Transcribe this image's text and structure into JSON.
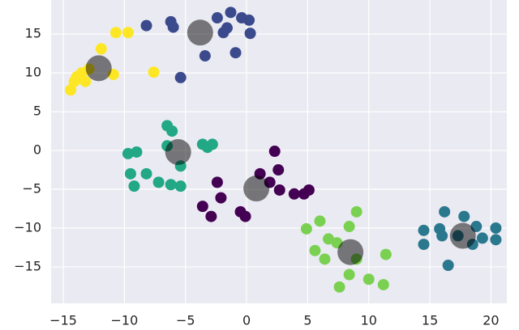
{
  "chart_data": {
    "type": "scatter",
    "grid": true,
    "background": "#eaeaf2",
    "xlim": [
      -16,
      21.3
    ],
    "ylim": [
      -19.7,
      19.4
    ],
    "xticks": [
      {
        "value": -15,
        "label": "−15"
      },
      {
        "value": -10,
        "label": "−10"
      },
      {
        "value": -5,
        "label": "−5"
      },
      0,
      5,
      10,
      15,
      20
    ],
    "yticks": [
      {
        "value": -15,
        "label": "−15"
      },
      {
        "value": -10,
        "label": "−10"
      },
      {
        "value": -5,
        "label": "−5"
      },
      0,
      5,
      10,
      15
    ],
    "series": [
      {
        "color": "#fde725",
        "x": [
          -14.4,
          -13.9,
          -13.5,
          -13.2,
          -14.1,
          -10.9,
          -11.9,
          -10.7,
          -9.7,
          -7.6,
          -12.9
        ],
        "values": [
          7.8,
          9.5,
          10,
          8.9,
          8.9,
          9.8,
          13.1,
          15.2,
          15.2,
          10.1,
          10.5
        ]
      },
      {
        "color": "#3b4a8c",
        "x": [
          -8.2,
          -6.2,
          -6.0,
          -5.4,
          -3.4,
          -2.4,
          -1.6,
          -1.9,
          -1.3,
          -0.9,
          0.2,
          0.3,
          -0.4
        ],
        "values": [
          16.1,
          16.6,
          15.9,
          9.4,
          12.2,
          17.1,
          15.8,
          15.2,
          17.8,
          12.6,
          16.8,
          15.1,
          17.1
        ]
      },
      {
        "color": "#22a884",
        "x": [
          -9.7,
          -9.0,
          -9.5,
          -9.2,
          -8.2,
          -7.2,
          -6.2,
          -5.4,
          -6.5,
          -6.1,
          -6.5,
          -5.4,
          -3.6,
          -2.8,
          -3.2
        ],
        "values": [
          -0.4,
          -0.2,
          -3.0,
          -4.6,
          -3.0,
          -4.1,
          -4.4,
          -4.6,
          3.2,
          2.5,
          0.6,
          -2.0,
          0.8,
          0.8,
          0.4
        ]
      },
      {
        "color": "#440154",
        "x": [
          -2.4,
          -2.1,
          -2.9,
          -3.6,
          -0.5,
          -0.1,
          1.1,
          2.3,
          2.6,
          2.7,
          3.9,
          4.7,
          5.1,
          1.9
        ],
        "values": [
          -4.1,
          -6.1,
          -8.5,
          -7.2,
          -7.9,
          -8.5,
          -3.0,
          -0.1,
          -2.5,
          -5.1,
          -5.6,
          -5.6,
          -5.1,
          -4.1
        ]
      },
      {
        "color": "#7ad151",
        "x": [
          4.9,
          6.0,
          5.6,
          6.4,
          7.6,
          8.4,
          9.0,
          7.4,
          8.4,
          10.0,
          11.4,
          11.2,
          9.0,
          6.7
        ],
        "values": [
          -10.1,
          -9.1,
          -12.9,
          -14.0,
          -17.6,
          -9.8,
          -7.9,
          -11.9,
          -16.0,
          -16.6,
          -13.4,
          -17.3,
          -14.0,
          -11.4
        ]
      },
      {
        "color": "#2a788e",
        "x": [
          14.5,
          14.5,
          16.2,
          15.8,
          16.0,
          16.5,
          17.8,
          18.5,
          18.8,
          19.3,
          20.4,
          20.4,
          17.3
        ],
        "values": [
          -10.3,
          -12.1,
          -7.9,
          -10.1,
          -11.0,
          -14.8,
          -8.5,
          -12.1,
          -9.8,
          -11.3,
          -10.0,
          -11.5,
          -11.0
        ]
      },
      {
        "color": "#000000",
        "opacity": 0.5,
        "x": [
          -12.1,
          -3.8,
          -5.6,
          0.8,
          8.5,
          17.7
        ],
        "values": [
          10.6,
          15.2,
          -0.2,
          -4.9,
          -13.1,
          -11.0
        ]
      }
    ]
  }
}
